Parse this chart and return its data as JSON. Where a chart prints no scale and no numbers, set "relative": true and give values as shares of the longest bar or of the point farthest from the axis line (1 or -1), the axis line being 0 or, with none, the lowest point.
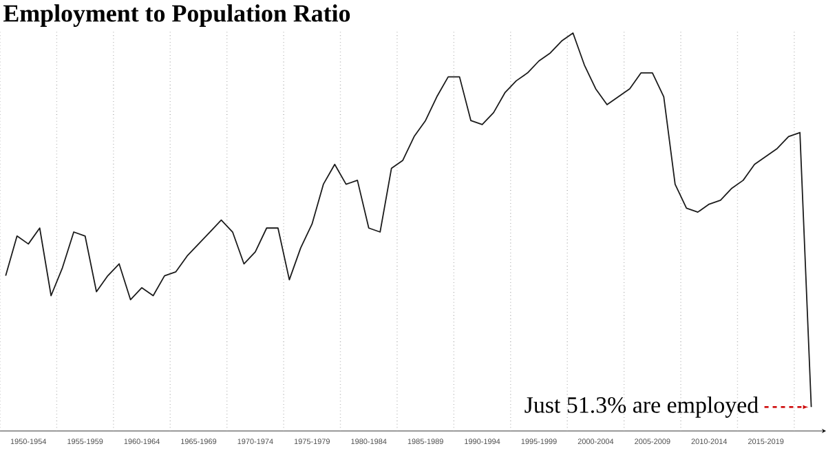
{
  "chart_data": {
    "type": "line",
    "title": "Employment to Population Ratio",
    "relative": true,
    "grid": true,
    "marker": "none",
    "line_style": "solid",
    "categories": [
      null,
      null,
      "1950-1954",
      null,
      null,
      null,
      null,
      "1955-1959",
      null,
      null,
      null,
      null,
      "1960-1964",
      null,
      null,
      null,
      null,
      "1965-1969",
      null,
      null,
      null,
      null,
      "1970-1974",
      null,
      null,
      null,
      null,
      "1975-1979",
      null,
      null,
      null,
      null,
      "1980-1984",
      null,
      null,
      null,
      null,
      "1985-1989",
      null,
      null,
      null,
      null,
      "1990-1994",
      null,
      null,
      null,
      null,
      "1995-1999",
      null,
      null,
      null,
      null,
      "2000-2004",
      null,
      null,
      null,
      null,
      "2005-2009",
      null,
      null,
      null,
      null,
      "2010-2014",
      null,
      null,
      null,
      null,
      "2015-2019",
      null,
      null,
      null,
      null
    ],
    "series": [
      {
        "color": "#1a1a1a",
        "values": [
          0.39,
          0.49,
          0.47,
          0.51,
          0.34,
          0.41,
          0.5,
          0.49,
          0.35,
          0.39,
          0.42,
          0.33,
          0.36,
          0.34,
          0.39,
          0.4,
          0.44,
          0.47,
          0.5,
          0.53,
          0.5,
          0.42,
          0.45,
          0.51,
          0.51,
          0.38,
          0.46,
          0.52,
          0.62,
          0.67,
          0.62,
          0.63,
          0.51,
          0.5,
          0.66,
          0.68,
          0.74,
          0.78,
          0.84,
          0.89,
          0.89,
          0.78,
          0.77,
          0.8,
          0.85,
          0.88,
          0.9,
          0.93,
          0.95,
          0.98,
          1,
          0.92,
          0.86,
          0.82,
          0.84,
          0.86,
          0.9,
          0.9,
          0.84,
          0.62,
          0.56,
          0.55,
          0.57,
          0.58,
          0.61,
          0.63,
          0.67,
          0.69,
          0.71,
          0.74,
          0.75,
          0.06
        ]
      }
    ],
    "annotations": [
      "Just 51.3% are employed"
    ]
  }
}
